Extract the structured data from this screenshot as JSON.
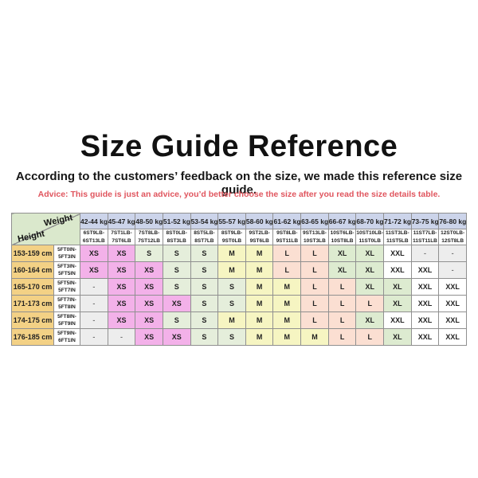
{
  "page": {
    "title": "Size Guide Reference",
    "subtitle": "According to the customers’ feedback on the size, we made this reference size guide.",
    "advice": "Advice: This guide is just an advice, you’d better choose the size after you read the size details table."
  },
  "colors": {
    "advice_text": "#e0555e",
    "border": "#909090",
    "header_kg_bg": "#ccd4ea",
    "corner_bg": "#dae8cc",
    "height_bg": "#f3d185",
    "sizes": {
      "XS": "#f3b1e9",
      "S": "#e5eedb",
      "M": "#f6f5c2",
      "L": "#fbdfd2",
      "XL": "#ddebd0",
      "XXL": "#ffffff",
      "-": "#ededed"
    }
  },
  "table": {
    "corner": {
      "weight_label": "Weight",
      "height_label": "Height"
    },
    "weights_kg": [
      "42-44 kg",
      "45-47 kg",
      "48-50 kg",
      "51-52 kg",
      "53-54 kg",
      "55-57 kg",
      "58-60 kg",
      "61-62 kg",
      "63-65 kg",
      "66-67 kg",
      "68-70 kg",
      "71-72 kg",
      "73-75 kg",
      "76-80 kg"
    ],
    "weights_lb": [
      [
        "6ST9LB-",
        "6ST13LB"
      ],
      [
        "7ST1LB-",
        "7ST6LB"
      ],
      [
        "7ST8LB-",
        "7ST12LB"
      ],
      [
        "8ST0LB-",
        "8ST3LB"
      ],
      [
        "8ST5LB-",
        "8ST7LB"
      ],
      [
        "8ST9LB-",
        "9ST0LB"
      ],
      [
        "9ST2LB-",
        "9ST6LB"
      ],
      [
        "9ST8LB-",
        "9ST11LB"
      ],
      [
        "9ST13LB-",
        "10ST3LB"
      ],
      [
        "10ST6LB-",
        "10ST8LB"
      ],
      [
        "10ST10LB-",
        "11ST0LB"
      ],
      [
        "11ST3LB-",
        "11ST5LB"
      ],
      [
        "11ST7LB-",
        "11ST11LB"
      ],
      [
        "12ST0LB-",
        "12ST8LB"
      ]
    ],
    "rows": [
      {
        "height_cm": "153-159 cm",
        "height_ftin": [
          "5FT0IN-",
          "5FT3IN"
        ],
        "sizes": [
          "XS",
          "XS",
          "S",
          "S",
          "S",
          "M",
          "M",
          "L",
          "L",
          "XL",
          "XL",
          "XXL",
          "-",
          "-"
        ]
      },
      {
        "height_cm": "160-164 cm",
        "height_ftin": [
          "5FT3IN-",
          "5FT5IN"
        ],
        "sizes": [
          "XS",
          "XS",
          "XS",
          "S",
          "S",
          "M",
          "M",
          "L",
          "L",
          "XL",
          "XL",
          "XXL",
          "XXL",
          "-"
        ]
      },
      {
        "height_cm": "165-170 cm",
        "height_ftin": [
          "5FT5IN-",
          "5FT7IN"
        ],
        "sizes": [
          "-",
          "XS",
          "XS",
          "S",
          "S",
          "S",
          "M",
          "M",
          "L",
          "L",
          "XL",
          "XL",
          "XXL",
          "XXL"
        ]
      },
      {
        "height_cm": "171-173 cm",
        "height_ftin": [
          "5FT7IN-",
          "5FT8IN"
        ],
        "sizes": [
          "-",
          "XS",
          "XS",
          "XS",
          "S",
          "S",
          "M",
          "M",
          "L",
          "L",
          "L",
          "XL",
          "XXL",
          "XXL"
        ]
      },
      {
        "height_cm": "174-175 cm",
        "height_ftin": [
          "5FT8IN-",
          "5FT9IN"
        ],
        "sizes": [
          "-",
          "XS",
          "XS",
          "S",
          "S",
          "M",
          "M",
          "M",
          "L",
          "L",
          "XL",
          "XXL",
          "XXL",
          "XXL"
        ]
      },
      {
        "height_cm": "176-185 cm",
        "height_ftin": [
          "5FT9IN-",
          "6FT1IN"
        ],
        "sizes": [
          "-",
          "-",
          "XS",
          "XS",
          "S",
          "S",
          "M",
          "M",
          "M",
          "L",
          "L",
          "XL",
          "XXL",
          "XXL"
        ]
      }
    ]
  }
}
